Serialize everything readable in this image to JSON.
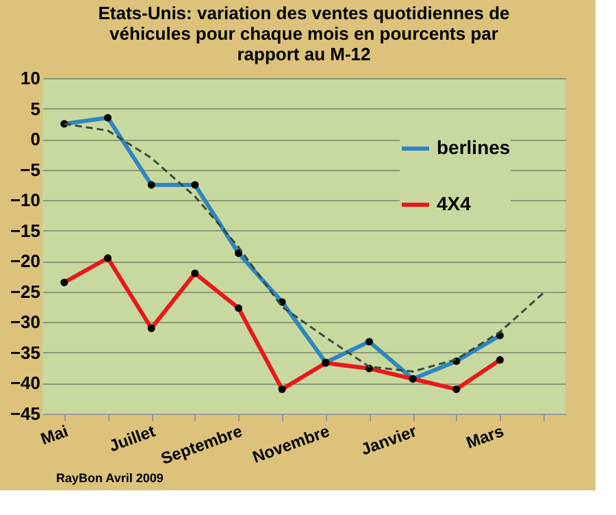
{
  "chart_data": {
    "type": "line",
    "title": [
      "Etats-Unis: variation des ventes quotidiennes de",
      "véhicules pour chaque mois en pourcents par",
      "rapport au M-12"
    ],
    "categories": [
      "Mai",
      null,
      "Juillet",
      null,
      "Septembre",
      null,
      "Novembre",
      null,
      "Janvier",
      null,
      "Mars",
      null
    ],
    "series": [
      {
        "name": "berlines",
        "color": "#2e86c1",
        "marker": "circle",
        "line_style": "solid",
        "values": [
          2.5,
          3.5,
          -7.5,
          -7.5,
          -18.7,
          -26.7,
          -36.6,
          -33.2,
          -39.3,
          -36.4,
          -32.2,
          null
        ]
      },
      {
        "name": "4X4",
        "color": "#e8191a",
        "marker": "circle",
        "line_style": "solid",
        "values": [
          -23.5,
          -19.5,
          -31,
          -22,
          -27.7,
          -41,
          -36.7,
          -37.6,
          -39.3,
          -41,
          -36.2,
          null
        ]
      },
      {
        "color": "#3a4a3a",
        "marker": "none",
        "line_style": "dashed",
        "values": [
          2.5,
          1.4,
          -3.1,
          -9.4,
          -17.7,
          -27.5,
          -32.5,
          -37.3,
          -38.1,
          -36.1,
          -31.6,
          -25.2
        ]
      }
    ],
    "ylim": [
      -45,
      10
    ],
    "yticks": [
      -45,
      -40,
      -35,
      -30,
      -25,
      -20,
      -15,
      -10,
      -5,
      0,
      5,
      10
    ],
    "grid": "y",
    "legend": "top right",
    "annotations": [
      "RayBon Avril 2009"
    ]
  }
}
